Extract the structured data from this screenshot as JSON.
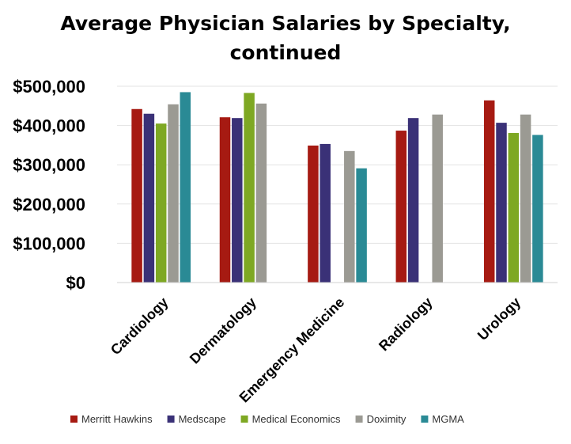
{
  "chart_data": {
    "type": "bar",
    "title_lines": [
      "Average Physician Salaries by Specialty,",
      "continued"
    ],
    "xlabel": "",
    "ylabel": "",
    "categories": [
      "Cardiology",
      "Dermatology",
      "Emergency Medicine",
      "Radiology",
      "Urology"
    ],
    "y_ticks": [
      "$0",
      "$100,000",
      "$200,000",
      "$300,000",
      "$400,000",
      "$500,000"
    ],
    "ylim": [
      0,
      500000
    ],
    "grid": true,
    "legend_position": "bottom",
    "series": [
      {
        "name": "Merritt Hawkins",
        "color": "#a61a12",
        "values": [
          442000,
          421000,
          349000,
          387000,
          464000
        ]
      },
      {
        "name": "Medscape",
        "color": "#3a3177",
        "values": [
          430000,
          419000,
          353000,
          419000,
          407000
        ]
      },
      {
        "name": "Medical Economics",
        "color": "#7ea823",
        "values": [
          405000,
          483000,
          null,
          null,
          381000
        ]
      },
      {
        "name": "Doximity",
        "color": "#9b9a93",
        "values": [
          454000,
          456000,
          335000,
          428000,
          428000
        ]
      },
      {
        "name": "MGMA",
        "color": "#2a8a95",
        "values": [
          485000,
          null,
          291000,
          null,
          376000
        ]
      }
    ]
  }
}
